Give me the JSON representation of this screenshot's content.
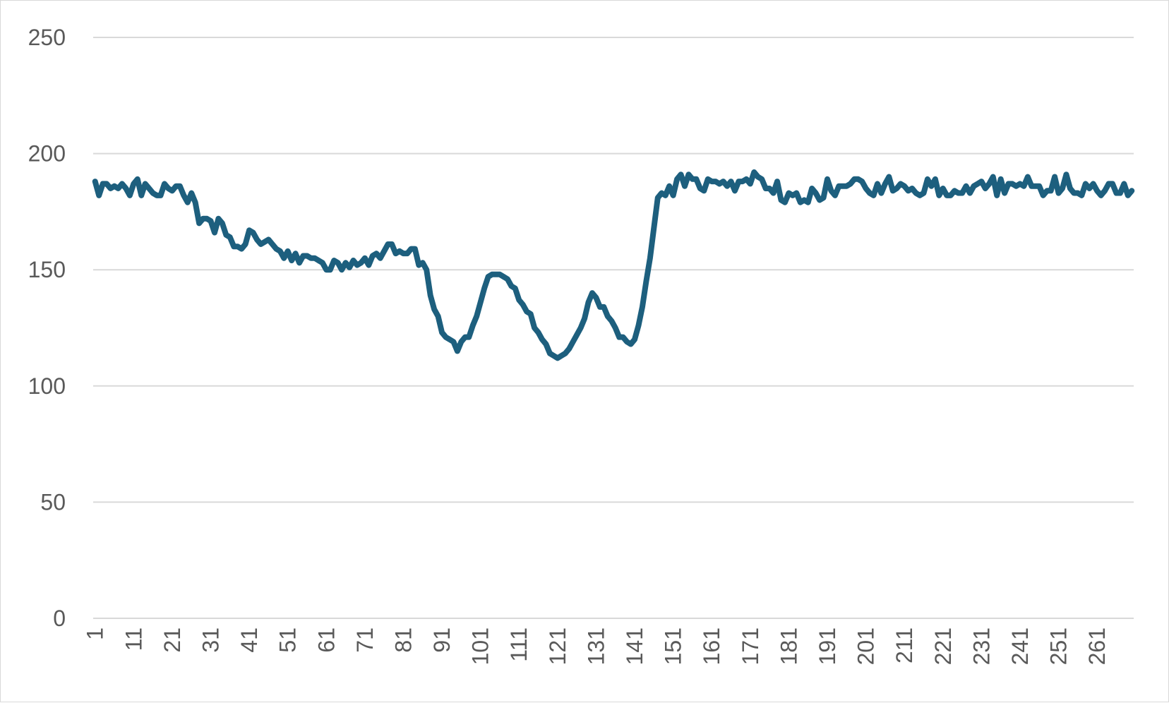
{
  "chart_data": {
    "type": "line",
    "title": "",
    "xlabel": "",
    "ylabel": "",
    "ylim": [
      0,
      250
    ],
    "y_ticks": [
      0,
      50,
      100,
      150,
      200,
      250
    ],
    "x_tick_labels": [
      "1",
      "11",
      "21",
      "31",
      "41",
      "51",
      "61",
      "71",
      "81",
      "91",
      "101",
      "111",
      "121",
      "131",
      "141",
      "151",
      "161",
      "171",
      "181",
      "191",
      "201",
      "211",
      "221",
      "231",
      "241",
      "251",
      "261"
    ],
    "grid": "horizontal",
    "legend": "none",
    "series_color": "#1d5f7e",
    "series": [
      {
        "values": [
          188,
          182,
          187,
          187,
          185,
          186,
          185,
          187,
          185,
          182,
          187,
          189,
          182,
          187,
          185,
          183,
          182,
          182,
          187,
          185,
          184,
          186,
          186,
          182,
          179,
          183,
          179,
          170,
          172,
          172,
          171,
          166,
          172,
          170,
          165,
          164,
          160,
          160,
          159,
          161,
          167,
          166,
          163,
          161,
          162,
          163,
          161,
          159,
          158,
          155,
          158,
          154,
          157,
          153,
          156,
          156,
          155,
          155,
          154,
          153,
          150,
          150,
          154,
          153,
          150,
          153,
          151,
          154,
          152,
          153,
          155,
          152,
          156,
          157,
          155,
          158,
          161,
          161,
          157,
          158,
          157,
          157,
          159,
          159,
          152,
          153,
          150,
          139,
          133,
          130,
          123,
          121,
          120,
          119,
          115,
          119,
          121,
          121,
          126,
          130,
          136,
          142,
          147,
          148,
          148,
          148,
          147,
          146,
          143,
          142,
          137,
          135,
          132,
          131,
          125,
          123,
          120,
          118,
          114,
          113,
          112,
          113,
          114,
          116,
          119,
          122,
          125,
          129,
          136,
          140,
          138,
          134,
          134,
          130,
          128,
          125,
          121,
          121,
          119,
          118,
          120,
          126,
          134,
          145,
          155,
          168,
          181,
          183,
          182,
          186,
          182,
          189,
          191,
          186,
          191,
          189,
          189,
          185,
          184,
          189,
          188,
          188,
          187,
          188,
          186,
          188,
          184,
          188,
          188,
          189,
          187,
          192,
          190,
          189,
          185,
          185,
          183,
          188,
          180,
          179,
          183,
          182,
          183,
          179,
          180,
          179,
          185,
          183,
          180,
          181,
          189,
          184,
          182,
          186,
          186,
          186,
          187,
          189,
          189,
          188,
          185,
          183,
          182,
          187,
          183,
          187,
          190,
          184,
          185,
          187,
          186,
          184,
          185,
          183,
          182,
          183,
          189,
          186,
          189,
          182,
          185,
          182,
          182,
          184,
          183,
          183,
          186,
          183,
          186,
          187,
          188,
          185,
          187,
          190,
          182,
          189,
          183,
          187,
          187,
          186,
          187,
          186,
          190,
          186,
          186,
          186,
          182,
          184,
          184,
          190,
          183,
          185,
          191,
          185,
          183,
          183,
          182,
          187,
          185,
          187,
          184,
          182,
          184,
          187,
          187,
          183,
          183,
          187,
          182,
          184
        ]
      }
    ]
  }
}
